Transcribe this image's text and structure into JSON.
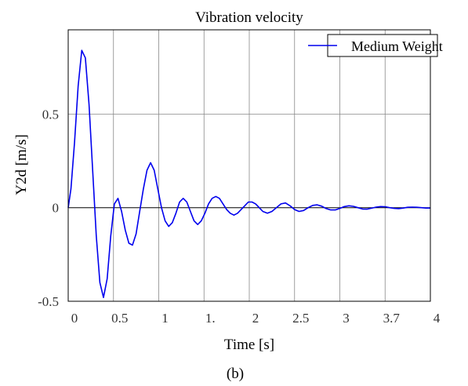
{
  "chart_data": {
    "type": "line",
    "title": "Vibration velocity",
    "xlabel": "Time [s]",
    "ylabel": "Y2d [m/s]",
    "caption": "(b)",
    "xlim": [
      0,
      4
    ],
    "ylim": [
      -0.5,
      0.95
    ],
    "grid": true,
    "legend_position": "top-right",
    "x_tick_labels": [
      "0",
      "0.5",
      "1",
      "1.",
      "2",
      "2.5",
      "3",
      "3.7",
      "4"
    ],
    "y_tick_labels": [
      "0.5",
      "0",
      "-0.5"
    ],
    "y_ticks": [
      0.5,
      0,
      -0.5
    ],
    "series": [
      {
        "name": "Medium Weight",
        "color": "#0000ee",
        "x": [
          0,
          0.03,
          0.07,
          0.11,
          0.15,
          0.19,
          0.23,
          0.27,
          0.31,
          0.35,
          0.39,
          0.43,
          0.47,
          0.51,
          0.55,
          0.59,
          0.63,
          0.67,
          0.71,
          0.75,
          0.79,
          0.83,
          0.87,
          0.91,
          0.95,
          0.99,
          1.03,
          1.07,
          1.11,
          1.15,
          1.19,
          1.23,
          1.27,
          1.31,
          1.35,
          1.39,
          1.43,
          1.47,
          1.51,
          1.55,
          1.59,
          1.63,
          1.67,
          1.71,
          1.75,
          1.79,
          1.83,
          1.87,
          1.91,
          1.95,
          1.99,
          2.03,
          2.07,
          2.11,
          2.15,
          2.2,
          2.25,
          2.3,
          2.35,
          2.4,
          2.45,
          2.5,
          2.55,
          2.6,
          2.65,
          2.7,
          2.75,
          2.8,
          2.85,
          2.9,
          2.95,
          3.0,
          3.05,
          3.1,
          3.15,
          3.2,
          3.25,
          3.3,
          3.35,
          3.4,
          3.45,
          3.5,
          3.55,
          3.6,
          3.65,
          3.7,
          3.75,
          3.8,
          3.85,
          3.9,
          3.95,
          4.0
        ],
        "values": [
          0.0,
          0.1,
          0.35,
          0.65,
          0.84,
          0.8,
          0.55,
          0.2,
          -0.15,
          -0.4,
          -0.48,
          -0.38,
          -0.15,
          0.02,
          0.05,
          -0.02,
          -0.12,
          -0.19,
          -0.2,
          -0.14,
          -0.02,
          0.1,
          0.2,
          0.24,
          0.2,
          0.1,
          0.0,
          -0.07,
          -0.1,
          -0.08,
          -0.03,
          0.03,
          0.05,
          0.03,
          -0.02,
          -0.07,
          -0.09,
          -0.07,
          -0.03,
          0.02,
          0.05,
          0.06,
          0.05,
          0.02,
          -0.01,
          -0.03,
          -0.04,
          -0.03,
          -0.01,
          0.01,
          0.03,
          0.03,
          0.02,
          0.0,
          -0.02,
          -0.03,
          -0.02,
          0.0,
          0.02,
          0.025,
          0.01,
          -0.01,
          -0.02,
          -0.015,
          0.0,
          0.012,
          0.015,
          0.008,
          -0.005,
          -0.012,
          -0.012,
          -0.004,
          0.006,
          0.01,
          0.007,
          0.0,
          -0.007,
          -0.008,
          -0.003,
          0.003,
          0.006,
          0.005,
          0.0,
          -0.004,
          -0.005,
          -0.002,
          0.002,
          0.003,
          0.002,
          0.0,
          -0.002,
          -0.002
        ]
      }
    ]
  }
}
